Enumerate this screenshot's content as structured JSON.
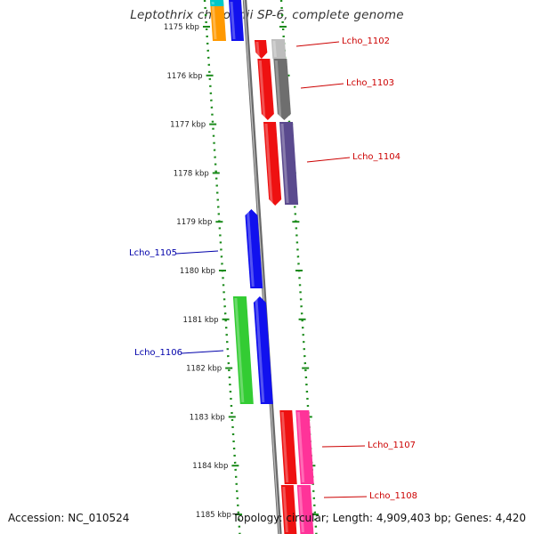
{
  "title": "Leptothrix cholodnii SP-6, complete genome",
  "footer": {
    "accession": "Accession: NC_010524",
    "topology": "Topology: circular; Length: 4,909,403 bp; Genes: 4,420"
  },
  "axis": {
    "ticks": [
      "1175 kbp",
      "1176 kbp",
      "1177 kbp",
      "1178 kbp",
      "1179 kbp",
      "1180 kbp",
      "1181 kbp",
      "1182 kbp",
      "1183 kbp",
      "1184 kbp",
      "1185 kbp"
    ]
  },
  "colors": {
    "red": "#ee1111",
    "gray_light": "#bdbdbd",
    "gray_dark": "#6e6e6e",
    "purple": "#5a4a8e",
    "blue": "#1111ee",
    "green": "#33cc33",
    "pink": "#ff3399",
    "orange": "#ff9900",
    "cyan": "#00c8c8",
    "backbone": "#888888",
    "tick_green": "#1a8a1a",
    "label_red": "#cc0000",
    "label_blue": "#0000aa"
  },
  "gene_labels": [
    {
      "name": "Lcho_1102",
      "side": "right",
      "strand": "plus"
    },
    {
      "name": "Lcho_1103",
      "side": "right",
      "strand": "plus"
    },
    {
      "name": "Lcho_1104",
      "side": "right",
      "strand": "plus"
    },
    {
      "name": "Lcho_1105",
      "side": "left",
      "strand": "minus"
    },
    {
      "name": "Lcho_1106",
      "side": "left",
      "strand": "minus"
    },
    {
      "name": "Lcho_1107",
      "side": "right",
      "strand": "plus"
    },
    {
      "name": "Lcho_1108",
      "side": "right",
      "strand": "plus"
    }
  ]
}
